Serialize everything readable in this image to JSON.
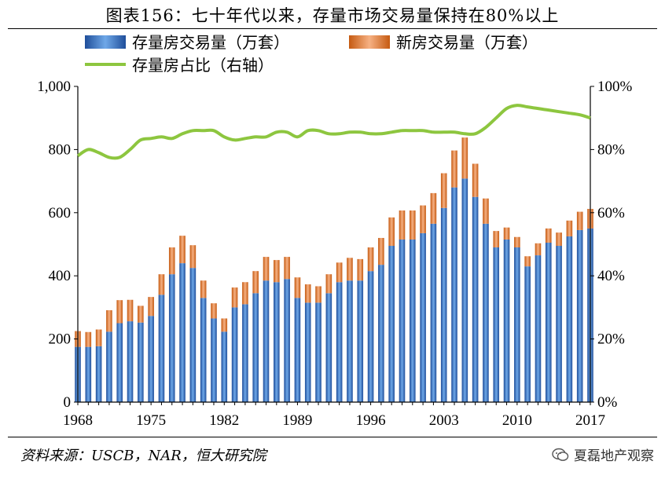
{
  "title": "图表156：七十年代以来，存量市场交易量保持在80%以上",
  "source": "资料来源：USCB，NAR，恒大研究院",
  "watermark": "夏磊地产观察",
  "chart_data": {
    "type": "bar",
    "stacked": true,
    "legend": {
      "existing": "存量房交易量（万套）",
      "new": "新房交易量（万套）",
      "ratio": "存量房占比（右轴）"
    },
    "colors": {
      "existing": "#3a78c2",
      "new": "#ed7d31",
      "ratio": "#8dc63f"
    },
    "years": [
      1968,
      1969,
      1970,
      1971,
      1972,
      1973,
      1974,
      1975,
      1976,
      1977,
      1978,
      1979,
      1980,
      1981,
      1982,
      1983,
      1984,
      1985,
      1986,
      1987,
      1988,
      1989,
      1990,
      1991,
      1992,
      1993,
      1994,
      1995,
      1996,
      1997,
      1998,
      1999,
      2000,
      2001,
      2002,
      2003,
      2004,
      2005,
      2006,
      2007,
      2008,
      2009,
      2010,
      2011,
      2012,
      2013,
      2014,
      2015,
      2016,
      2017
    ],
    "x_tick_years": [
      "1968",
      "1975",
      "1982",
      "1989",
      "1996",
      "2003",
      "2010",
      "2017"
    ],
    "series": [
      {
        "name": "存量房交易量（万套）",
        "key": "existing",
        "values": [
          175,
          175,
          177,
          223,
          250,
          256,
          252,
          273,
          340,
          405,
          440,
          425,
          330,
          265,
          223,
          300,
          310,
          345,
          385,
          380,
          390,
          330,
          315,
          315,
          345,
          380,
          385,
          385,
          415,
          435,
          495,
          515,
          515,
          535,
          565,
          615,
          680,
          708,
          650,
          565,
          490,
          515,
          490,
          430,
          465,
          505,
          495,
          525,
          545,
          550
        ]
      },
      {
        "name": "新房交易量（万套）",
        "key": "new",
        "values": [
          50,
          47,
          53,
          68,
          73,
          68,
          53,
          60,
          65,
          85,
          87,
          72,
          55,
          48,
          42,
          63,
          70,
          70,
          75,
          70,
          70,
          65,
          58,
          52,
          60,
          62,
          72,
          68,
          75,
          85,
          90,
          92,
          92,
          88,
          97,
          110,
          117,
          130,
          105,
          80,
          52,
          38,
          33,
          32,
          38,
          45,
          42,
          50,
          58,
          62
        ]
      },
      {
        "name": "存量房占比（右轴）",
        "key": "ratio",
        "values": [
          78,
          80,
          79,
          77.5,
          77.5,
          80,
          83,
          83.5,
          84,
          83.5,
          85,
          86,
          86,
          86,
          84,
          83,
          83.5,
          84,
          84,
          85.5,
          85.5,
          84,
          86,
          86,
          85,
          85,
          85.5,
          85.5,
          85,
          85,
          85.5,
          86,
          86,
          86,
          85.5,
          85.5,
          85.5,
          85,
          85,
          87,
          90,
          93,
          94,
          93.5,
          93,
          92.5,
          92,
          91.5,
          91,
          90
        ]
      }
    ],
    "y_left": {
      "min": 0,
      "max": 1000,
      "ticks": [
        "0",
        "200",
        "400",
        "600",
        "800",
        "1,000"
      ]
    },
    "y_right": {
      "min": 0,
      "max": 100,
      "ticks": [
        "0%",
        "20%",
        "40%",
        "60%",
        "80%",
        "100%"
      ]
    }
  }
}
